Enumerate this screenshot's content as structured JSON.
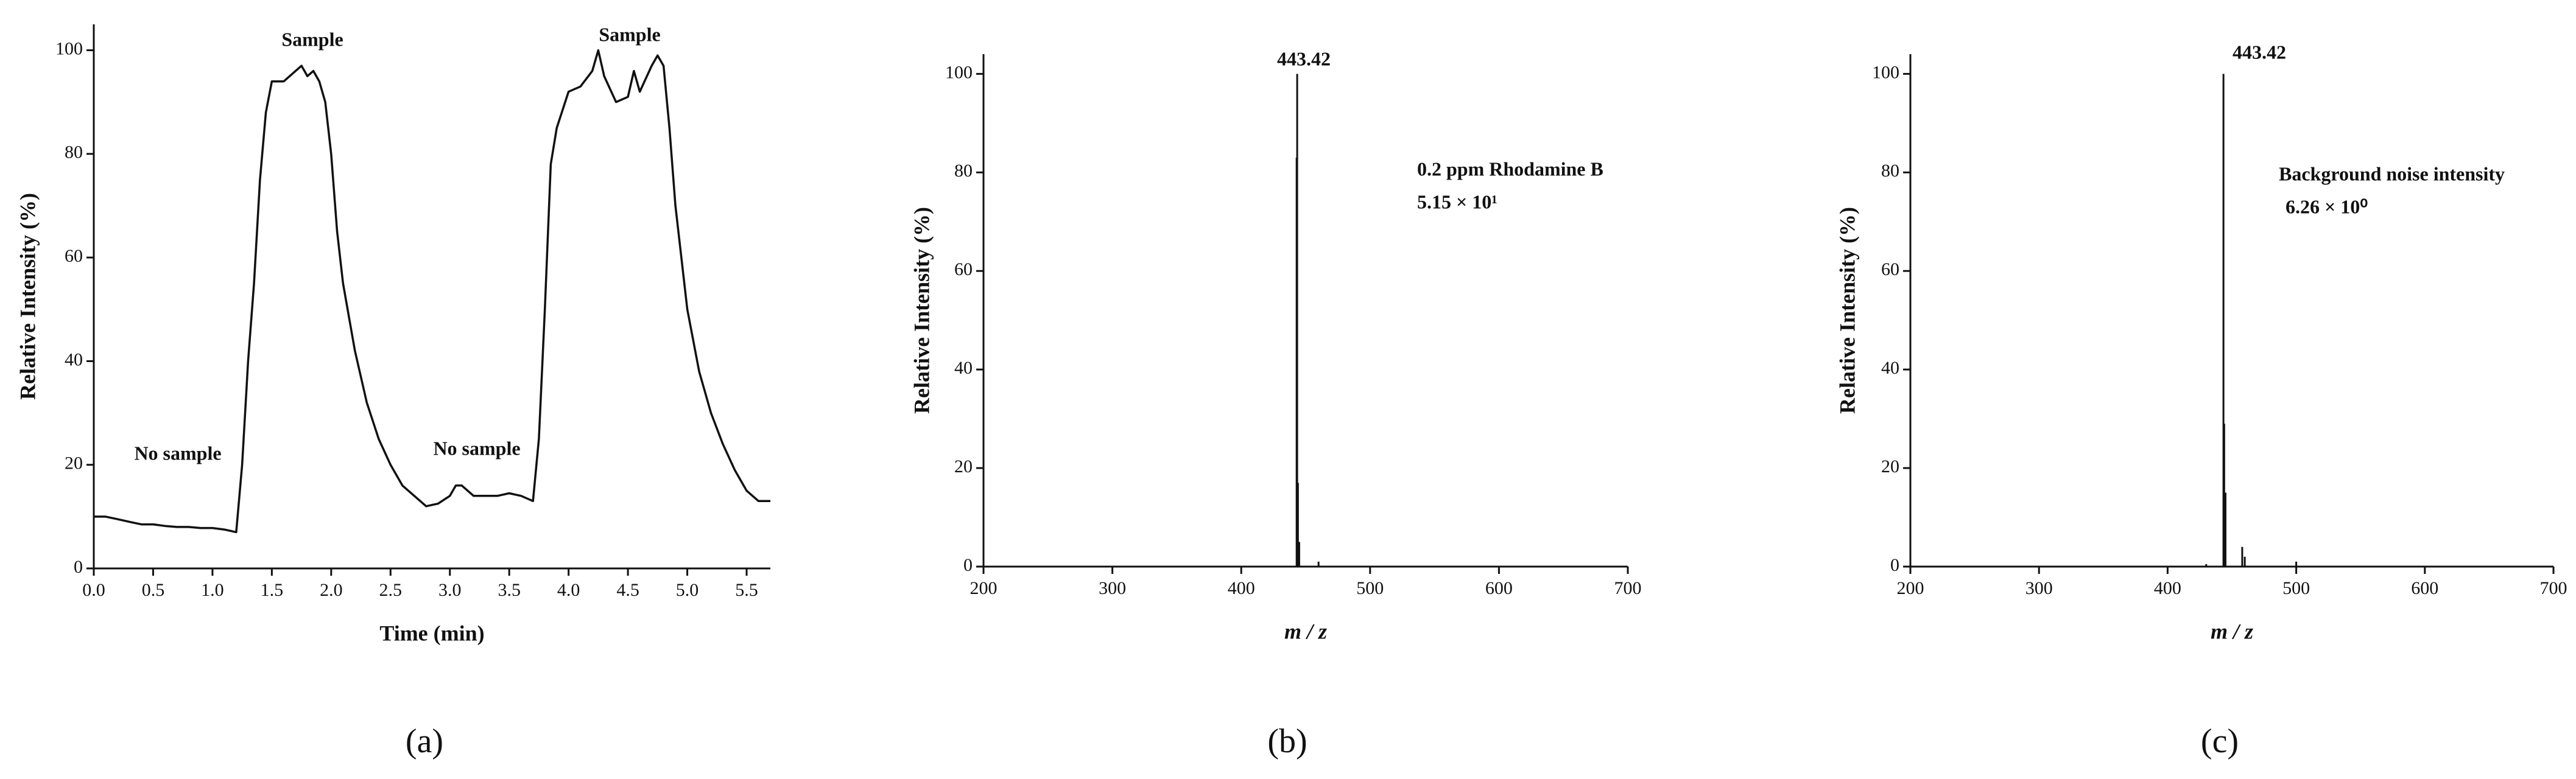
{
  "chart_data": [
    {
      "type": "line",
      "panel_label": "(a)",
      "xlabel": "Time (min)",
      "ylabel": "Relative Intensity (%)",
      "annotations": [
        "No sample",
        "Sample",
        "No sample",
        "Sample"
      ],
      "color": "#111111",
      "x": [
        0.0,
        0.1,
        0.2,
        0.3,
        0.4,
        0.5,
        0.6,
        0.7,
        0.8,
        0.9,
        1.0,
        1.1,
        1.2,
        1.25,
        1.3,
        1.35,
        1.4,
        1.45,
        1.5,
        1.6,
        1.7,
        1.75,
        1.8,
        1.85,
        1.9,
        1.95,
        2.0,
        2.05,
        2.1,
        2.2,
        2.3,
        2.4,
        2.5,
        2.6,
        2.7,
        2.8,
        2.9,
        3.0,
        3.05,
        3.1,
        3.2,
        3.3,
        3.4,
        3.5,
        3.6,
        3.7,
        3.75,
        3.8,
        3.85,
        3.9,
        4.0,
        4.1,
        4.2,
        4.25,
        4.3,
        4.4,
        4.5,
        4.55,
        4.6,
        4.7,
        4.75,
        4.8,
        4.85,
        4.9,
        5.0,
        5.1,
        5.2,
        5.3,
        5.4,
        5.5,
        5.6,
        5.7
      ],
      "values": [
        10,
        10,
        9.5,
        9,
        8.5,
        8.5,
        8.2,
        8,
        8,
        7.8,
        7.8,
        7.5,
        7,
        20,
        40,
        55,
        75,
        88,
        94,
        94,
        96,
        97,
        95,
        96,
        94,
        90,
        80,
        65,
        55,
        42,
        32,
        25,
        20,
        16,
        14,
        12,
        12.5,
        14,
        16,
        16,
        14,
        14,
        14,
        14.5,
        14,
        13,
        25,
        50,
        78,
        85,
        92,
        93,
        96,
        100,
        95,
        90,
        91,
        96,
        92,
        97,
        99,
        97,
        85,
        70,
        50,
        38,
        30,
        24,
        19,
        15,
        13,
        13
      ],
      "xlim": [
        0,
        5.7
      ],
      "ylim": [
        0,
        105
      ],
      "xticks": [
        {
          "value": 0,
          "label": "0.0"
        },
        0.5,
        {
          "value": 1,
          "label": "1.0"
        },
        1.5,
        {
          "value": 2,
          "label": "2.0"
        },
        2.5,
        {
          "value": 3,
          "label": "3.0"
        },
        3.5,
        {
          "value": 4,
          "label": "4.0"
        },
        4.5,
        {
          "value": 5,
          "label": "5.0"
        },
        5.5
      ],
      "yticks": [
        0,
        20,
        40,
        60,
        80,
        100
      ]
    },
    {
      "type": "stem",
      "panel_label": "(b)",
      "xlabel": "m / z",
      "ylabel": "Relative Intensity (%)",
      "annotations": [
        "443.42",
        "0.2 ppm Rhodamine B",
        "5.15 × 10¹"
      ],
      "color": "#111111",
      "x": [
        443,
        443.42,
        444,
        445,
        460
      ],
      "values": [
        83,
        100,
        17,
        5,
        1
      ],
      "xlim": [
        200,
        700
      ],
      "ylim": [
        0,
        104
      ],
      "xticks": [
        200,
        300,
        400,
        500,
        600,
        700
      ],
      "yticks": [
        0,
        20,
        40,
        60,
        80,
        100
      ]
    },
    {
      "type": "stem",
      "panel_label": "(c)",
      "xlabel": "m / z",
      "ylabel": "Relative Intensity (%)",
      "annotations": [
        "443.42",
        "Background noise intensity",
        "6.26 × 10⁰"
      ],
      "color": "#111111",
      "x": [
        430,
        443.42,
        444,
        445,
        458,
        460,
        500
      ],
      "values": [
        0.5,
        100,
        29,
        15,
        4,
        2,
        1
      ],
      "xlim": [
        200,
        700
      ],
      "ylim": [
        0,
        104
      ],
      "xticks": [
        200,
        300,
        400,
        500,
        600,
        700
      ],
      "yticks": [
        0,
        20,
        40,
        60,
        80,
        100
      ]
    }
  ]
}
